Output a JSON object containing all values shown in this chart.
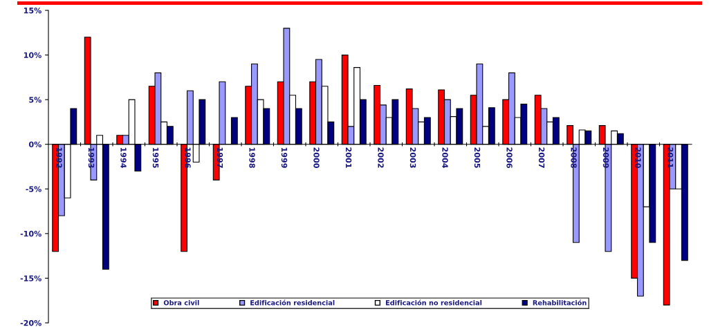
{
  "chart_data": {
    "type": "bar",
    "categories": [
      "1992",
      "1993",
      "1994",
      "1995",
      "1996",
      "1997",
      "1998",
      "1999",
      "2000",
      "2001",
      "2002",
      "2003",
      "2004",
      "2005",
      "2006",
      "2007",
      "2008",
      "2009",
      "2010",
      "2011"
    ],
    "series": [
      {
        "name": "Obra civil",
        "color": "#ff0000",
        "values": [
          -12,
          12,
          1,
          6.5,
          -12,
          -4,
          6.5,
          7,
          7,
          10,
          6.6,
          6.2,
          6.1,
          5.5,
          5,
          5.5,
          2.1,
          2.1,
          -15,
          -18
        ]
      },
      {
        "name": "Edificación residencial",
        "color": "#9999ff",
        "values": [
          -8,
          -4,
          1,
          8,
          6,
          7,
          9,
          13,
          9.5,
          2,
          4.4,
          4,
          5,
          9,
          8,
          4,
          -11,
          -12,
          -17,
          -5
        ]
      },
      {
        "name": "Edificación no residencial",
        "color": "#ffffff",
        "values": [
          -6,
          1,
          5,
          2.5,
          -2,
          0,
          5,
          5.5,
          6.5,
          8.6,
          3,
          2.5,
          3.1,
          2,
          3,
          2.5,
          1.6,
          1.5,
          -7,
          -5
        ]
      },
      {
        "name": "Rehabilitación",
        "color": "#000080",
        "values": [
          4,
          -14,
          -3,
          2,
          5,
          3,
          4,
          4,
          2.5,
          5,
          5,
          3,
          4,
          4.1,
          4.5,
          3,
          1.5,
          1.2,
          -11,
          -13
        ]
      }
    ],
    "ylim": [
      -20,
      15
    ],
    "yticks": [
      {
        "value": -20,
        "label": "-20%"
      },
      {
        "value": -15,
        "label": "-15%"
      },
      {
        "value": -10,
        "label": "-10%"
      },
      {
        "value": -5,
        "label": "-5%"
      },
      {
        "value": 0,
        "label": "0%"
      },
      {
        "value": 5,
        "label": "5%"
      },
      {
        "value": 10,
        "label": "10%"
      },
      {
        "value": 15,
        "label": "15%"
      }
    ],
    "grid": false,
    "legend": "bottom"
  }
}
